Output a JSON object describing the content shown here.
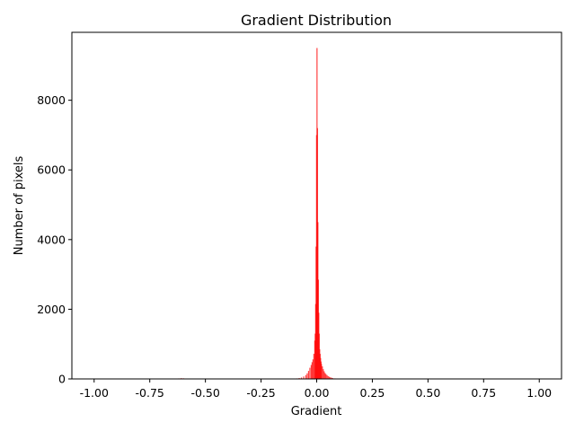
{
  "chart_data": {
    "type": "bar",
    "title": "Gradient Distribution",
    "xlabel": "Gradient",
    "ylabel": "Number of pixels",
    "xlim": [
      -1.1,
      1.1
    ],
    "ylim": [
      0,
      9950
    ],
    "xticks": [
      -1.0,
      -0.75,
      -0.5,
      -0.25,
      0.0,
      0.25,
      0.5,
      0.75,
      1.0
    ],
    "xtick_labels": [
      "-1.00",
      "-0.75",
      "-0.50",
      "-0.25",
      "0.00",
      "0.25",
      "0.50",
      "0.75",
      "1.00"
    ],
    "yticks": [
      0,
      2000,
      4000,
      6000,
      8000
    ],
    "ytick_labels": [
      "0",
      "2000",
      "4000",
      "6000",
      "8000"
    ],
    "grid": false,
    "legend": "none",
    "color": "#ff0000",
    "bin_width": 0.002,
    "bins": [
      [
        -0.64,
        8
      ],
      [
        -0.63,
        12
      ],
      [
        -0.62,
        15
      ],
      [
        -0.61,
        22
      ],
      [
        -0.6,
        18
      ],
      [
        -0.59,
        10
      ],
      [
        -0.38,
        6
      ],
      [
        -0.12,
        4
      ],
      [
        -0.1,
        8
      ],
      [
        -0.09,
        15
      ],
      [
        -0.08,
        25
      ],
      [
        -0.07,
        40
      ],
      [
        -0.06,
        70
      ],
      [
        -0.05,
        110
      ],
      [
        -0.044,
        160
      ],
      [
        -0.038,
        230
      ],
      [
        -0.032,
        320
      ],
      [
        -0.026,
        400
      ],
      [
        -0.022,
        480
      ],
      [
        -0.018,
        560
      ],
      [
        -0.014,
        720
      ],
      [
        -0.01,
        1100
      ],
      [
        -0.008,
        1300
      ],
      [
        -0.006,
        2150
      ],
      [
        -0.004,
        3800
      ],
      [
        -0.002,
        7000
      ],
      [
        0.0,
        9500
      ],
      [
        0.002,
        7200
      ],
      [
        0.004,
        4500
      ],
      [
        0.006,
        2850
      ],
      [
        0.008,
        1900
      ],
      [
        0.01,
        1300
      ],
      [
        0.012,
        850
      ],
      [
        0.014,
        720
      ],
      [
        0.016,
        600
      ],
      [
        0.018,
        500
      ],
      [
        0.02,
        430
      ],
      [
        0.024,
        360
      ],
      [
        0.028,
        280
      ],
      [
        0.032,
        220
      ],
      [
        0.036,
        170
      ],
      [
        0.04,
        140
      ],
      [
        0.045,
        110
      ],
      [
        0.05,
        80
      ],
      [
        0.055,
        60
      ],
      [
        0.06,
        45
      ],
      [
        0.065,
        35
      ],
      [
        0.07,
        25
      ],
      [
        0.08,
        15
      ],
      [
        0.09,
        8
      ],
      [
        0.1,
        5
      ]
    ]
  }
}
